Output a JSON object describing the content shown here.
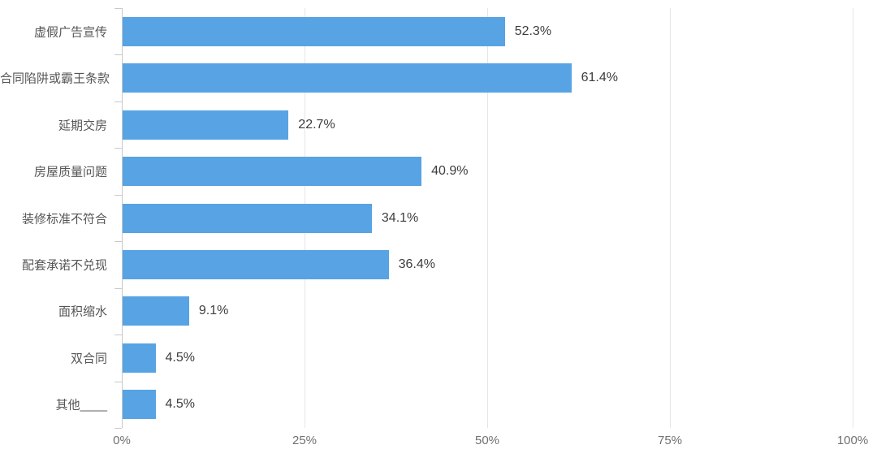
{
  "colors": {
    "bar": "#57A3E4",
    "grid": "#E6E6E6",
    "axis": "#C9C9C9",
    "category_text": "#555555",
    "value_text": "#3D3D3D",
    "tick_text": "#707070",
    "background": "#FFFFFF"
  },
  "chart_data": {
    "type": "bar",
    "orientation": "horizontal",
    "title": "",
    "xlabel": "",
    "ylabel": "",
    "legend": null,
    "categories": [
      "虚假广告宣传",
      "合同陷阱或霸王条款",
      "延期交房",
      "房屋质量问题",
      "装修标准不符合",
      "配套承诺不兑现",
      "面积缩水",
      "双合同",
      "其他____"
    ],
    "values": [
      52.3,
      61.4,
      22.7,
      40.9,
      34.1,
      36.4,
      9.1,
      4.5,
      4.5
    ],
    "value_labels": [
      "52.3%",
      "61.4%",
      "22.7%",
      "40.9%",
      "34.1%",
      "36.4%",
      "9.1%",
      "4.5%",
      "4.5%"
    ],
    "x_axis": {
      "min": 0,
      "max": 100,
      "tick_values": [
        0,
        25,
        50,
        75,
        100
      ],
      "tick_labels": [
        "0%",
        "25%",
        "50%",
        "75%",
        "100%"
      ]
    },
    "grid": {
      "vertical": true,
      "horizontal": false
    }
  }
}
